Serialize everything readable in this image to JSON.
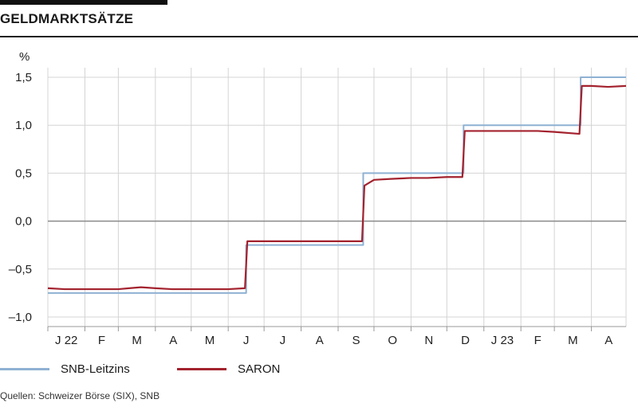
{
  "page": {
    "title": "GELDMARKTSÄTZE",
    "source": "Quellen: Schweizer Börse (SIX), SNB"
  },
  "colors": {
    "snb": "#8fb1d3",
    "saron": "#a3222e",
    "grid": "#d4d4d4",
    "zero": "#8a8a8a"
  },
  "chart_data": {
    "type": "line",
    "title": "GELDMARKTSÄTZE",
    "ylabel": "%",
    "ylim": [
      -1.1,
      1.6
    ],
    "yticks": [
      1.5,
      1.0,
      0.5,
      0.0,
      -0.5,
      -1.0
    ],
    "ytick_labels": [
      "1,5",
      "1,0",
      "0,5",
      "0,0",
      "–0,5",
      "–1,0"
    ],
    "x_range": [
      "2022-01-01",
      "2023-04-30"
    ],
    "x_tick_labels": [
      "J 22",
      "F",
      "M",
      "A",
      "M",
      "J",
      "J",
      "A",
      "S",
      "O",
      "N",
      "D",
      "J 23",
      "F",
      "M",
      "A"
    ],
    "grid": true,
    "legend_position": "bottom",
    "series": [
      {
        "name": "SNB-Leitzins",
        "step": true,
        "points": [
          [
            "2022-01-01",
            -0.75
          ],
          [
            "2022-06-16",
            -0.25
          ],
          [
            "2022-09-22",
            0.5
          ],
          [
            "2022-12-15",
            1.0
          ],
          [
            "2023-03-23",
            1.5
          ],
          [
            "2023-04-30",
            1.5
          ]
        ]
      },
      {
        "name": "SARON",
        "step": false,
        "points": [
          [
            "2022-01-01",
            -0.7
          ],
          [
            "2022-01-15",
            -0.71
          ],
          [
            "2022-02-01",
            -0.71
          ],
          [
            "2022-02-15",
            -0.71
          ],
          [
            "2022-03-01",
            -0.71
          ],
          [
            "2022-03-10",
            -0.7
          ],
          [
            "2022-03-20",
            -0.69
          ],
          [
            "2022-04-01",
            -0.7
          ],
          [
            "2022-04-15",
            -0.71
          ],
          [
            "2022-05-01",
            -0.71
          ],
          [
            "2022-05-15",
            -0.71
          ],
          [
            "2022-06-01",
            -0.71
          ],
          [
            "2022-06-15",
            -0.7
          ],
          [
            "2022-06-17",
            -0.21
          ],
          [
            "2022-07-01",
            -0.21
          ],
          [
            "2022-07-15",
            -0.21
          ],
          [
            "2022-08-01",
            -0.21
          ],
          [
            "2022-08-15",
            -0.21
          ],
          [
            "2022-09-01",
            -0.21
          ],
          [
            "2022-09-21",
            -0.21
          ],
          [
            "2022-09-23",
            0.37
          ],
          [
            "2022-10-01",
            0.43
          ],
          [
            "2022-10-15",
            0.44
          ],
          [
            "2022-11-01",
            0.45
          ],
          [
            "2022-11-15",
            0.45
          ],
          [
            "2022-12-01",
            0.46
          ],
          [
            "2022-12-14",
            0.46
          ],
          [
            "2022-12-16",
            0.94
          ],
          [
            "2023-01-01",
            0.94
          ],
          [
            "2023-01-15",
            0.94
          ],
          [
            "2023-02-01",
            0.94
          ],
          [
            "2023-02-15",
            0.94
          ],
          [
            "2023-03-01",
            0.93
          ],
          [
            "2023-03-22",
            0.91
          ],
          [
            "2023-03-24",
            1.41
          ],
          [
            "2023-04-01",
            1.41
          ],
          [
            "2023-04-15",
            1.4
          ],
          [
            "2023-04-30",
            1.41
          ]
        ]
      }
    ]
  }
}
